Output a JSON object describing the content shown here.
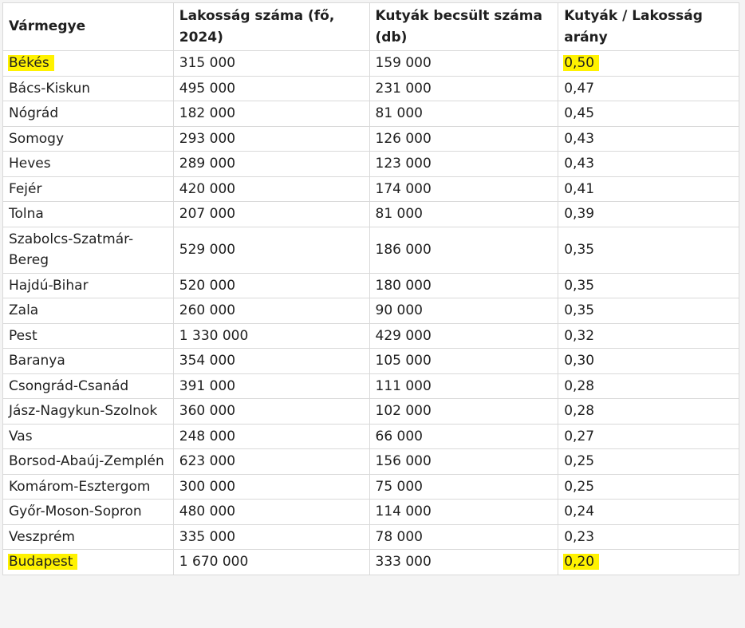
{
  "table": {
    "header": [
      "Vármegye",
      "Lakosság száma (fő, 2024)",
      "Kutyák becsült száma (db)",
      "Kutyák / Lakosság arány"
    ],
    "rows": [
      [
        "Békés",
        "315 000",
        "159 000",
        "0,50"
      ],
      [
        "Bács-Kiskun",
        "495 000",
        "231 000",
        "0,47"
      ],
      [
        "Nógrád",
        "182 000",
        "81 000",
        "0,45"
      ],
      [
        "Somogy",
        "293 000",
        "126 000",
        "0,43"
      ],
      [
        "Heves",
        "289 000",
        "123 000",
        "0,43"
      ],
      [
        "Fejér",
        "420 000",
        "174 000",
        "0,41"
      ],
      [
        "Tolna",
        "207 000",
        "81 000",
        "0,39"
      ],
      [
        "Szabolcs-Szatmár-Bereg",
        "529 000",
        "186 000",
        "0,35"
      ],
      [
        "Hajdú-Bihar",
        "520 000",
        "180 000",
        "0,35"
      ],
      [
        "Zala",
        "260 000",
        "90 000",
        "0,35"
      ],
      [
        "Pest",
        "1 330 000",
        "429 000",
        "0,32"
      ],
      [
        "Baranya",
        "354 000",
        "105 000",
        "0,30"
      ],
      [
        "Csongrád-Csanád",
        "391 000",
        "111 000",
        "0,28"
      ],
      [
        "Jász-Nagykun-Szolnok",
        "360 000",
        "102 000",
        "0,28"
      ],
      [
        "Vas",
        "248 000",
        "66 000",
        "0,27"
      ],
      [
        "Borsod-Abaúj-Zemplén",
        "623 000",
        "156 000",
        "0,25"
      ],
      [
        "Komárom-Esztergom",
        "300 000",
        "75 000",
        "0,25"
      ],
      [
        "Győr-Moson-Sopron",
        "480 000",
        "114 000",
        "0,24"
      ],
      [
        "Veszprém",
        "335 000",
        "78 000",
        "0,23"
      ],
      [
        "Budapest",
        "1 670 000",
        "333 000",
        "0,20"
      ]
    ]
  }
}
